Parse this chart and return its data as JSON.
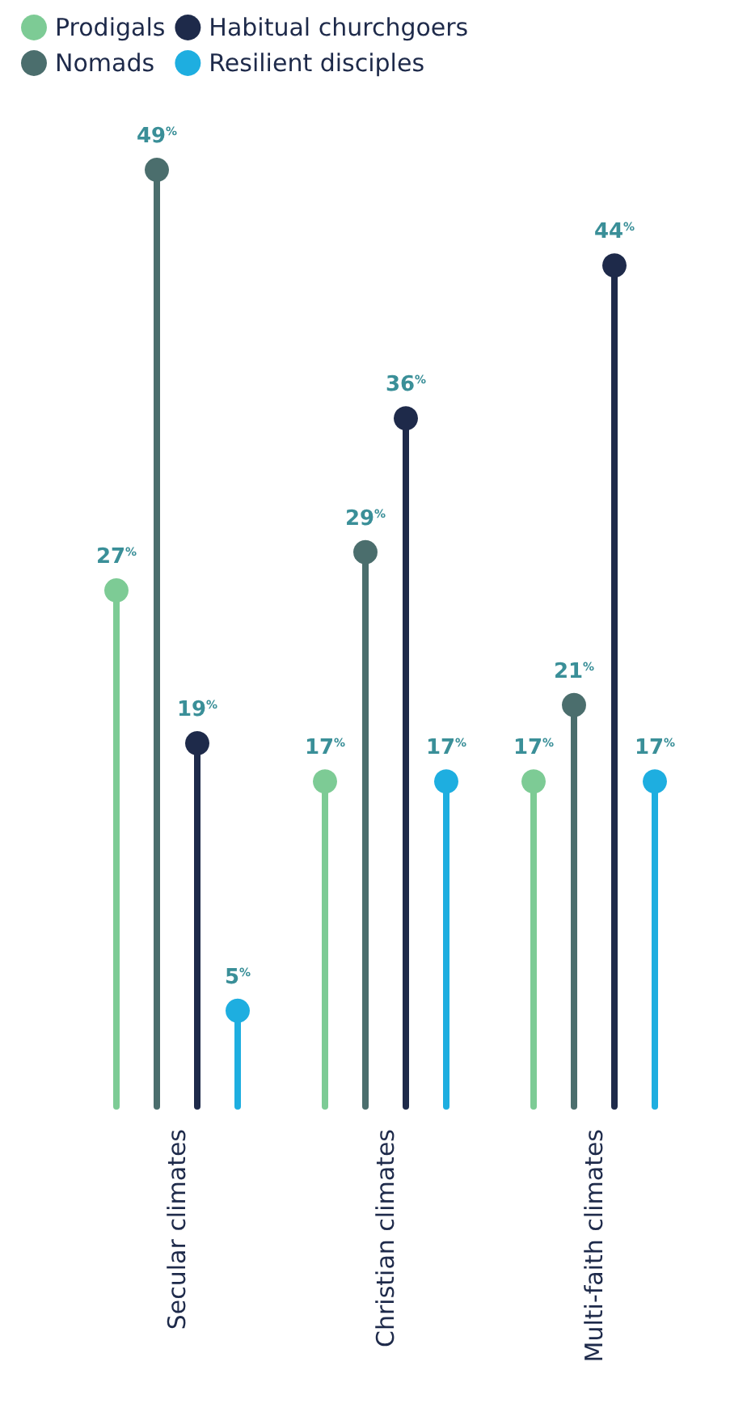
{
  "chart_data": {
    "type": "lollipop",
    "categories": [
      "Secular climates",
      "Christian climates",
      "Multi-faith climates"
    ],
    "series": [
      {
        "name": "Prodigals",
        "color": "#7dcb95",
        "values": [
          27,
          17,
          17
        ],
        "value_labels": [
          "27%",
          "17%",
          "17%"
        ]
      },
      {
        "name": "Nomads",
        "color": "#4b6e6d",
        "values": [
          49,
          29,
          21
        ],
        "value_labels": [
          "49%",
          "29%",
          "21%"
        ]
      },
      {
        "name": "Habitual churchgoers",
        "color": "#1e2a4a",
        "values": [
          19,
          36,
          44
        ],
        "value_labels": [
          "19%",
          "36%",
          "44%"
        ]
      },
      {
        "name": "Resilient disciples",
        "color": "#1eaee0",
        "values": [
          5,
          17,
          17
        ],
        "value_labels": [
          "5%",
          "17%",
          "17%"
        ]
      }
    ],
    "legend": "top",
    "marker": "circle",
    "grid": false
  }
}
